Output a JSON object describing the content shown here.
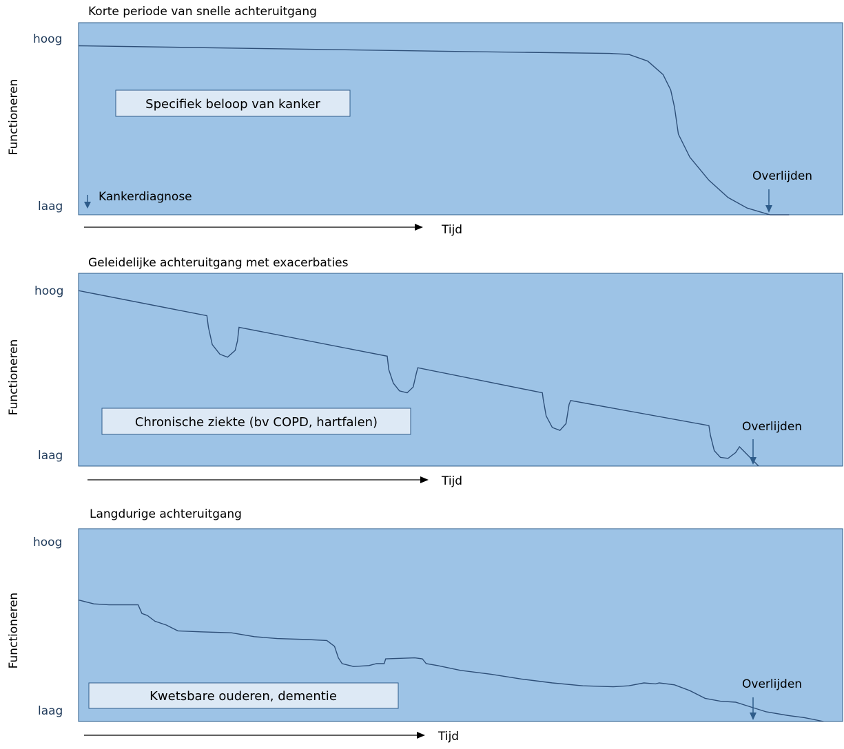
{
  "colors": {
    "panel_fill": "#9dc3e6",
    "panel_border": "#2e5c8a",
    "curve": "#2e4f78",
    "label_box_fill": "#dde9f5",
    "arrow": "#2e5c8a",
    "level_text": "#1f3a5a"
  },
  "chart_data": [
    {
      "type": "line",
      "title": "Korte periode van snelle achteruitgang",
      "ylabel": "Functioneren",
      "ytick_top": "hoog",
      "ytick_bottom": "laag",
      "xlabel": "Tijd",
      "box_label": "Specifiek beloop van kanker",
      "start_annotation": "Kankerdiagnose",
      "end_annotation": "Overlijden",
      "xlim": [
        0,
        1
      ],
      "ylim": [
        0,
        1
      ],
      "points": [
        [
          0,
          0.88
        ],
        [
          0.25,
          0.865
        ],
        [
          0.5,
          0.85
        ],
        [
          0.695,
          0.84
        ],
        [
          0.72,
          0.835
        ],
        [
          0.745,
          0.8
        ],
        [
          0.765,
          0.73
        ],
        [
          0.775,
          0.65
        ],
        [
          0.78,
          0.56
        ],
        [
          0.785,
          0.42
        ],
        [
          0.8,
          0.3
        ],
        [
          0.825,
          0.18
        ],
        [
          0.85,
          0.09
        ],
        [
          0.875,
          0.035
        ],
        [
          0.905,
          0.0
        ],
        [
          0.93,
          0.0
        ]
      ]
    },
    {
      "type": "line",
      "title": "Geleidelijke achteruitgang met exacerbaties",
      "ylabel": "Functioneren",
      "ytick_top": "hoog",
      "ytick_bottom": "laag",
      "xlabel": "Tijd",
      "box_label": "Chronische ziekte (bv COPD, hartfalen)",
      "end_annotation": "Overlijden",
      "xlim": [
        0,
        1
      ],
      "ylim": [
        0,
        1
      ],
      "points": [
        [
          0,
          0.91
        ],
        [
          0.168,
          0.78
        ],
        [
          0.17,
          0.72
        ],
        [
          0.175,
          0.63
        ],
        [
          0.185,
          0.58
        ],
        [
          0.195,
          0.565
        ],
        [
          0.205,
          0.6
        ],
        [
          0.208,
          0.65
        ],
        [
          0.21,
          0.72
        ],
        [
          0.404,
          0.57
        ],
        [
          0.406,
          0.5
        ],
        [
          0.412,
          0.43
        ],
        [
          0.42,
          0.39
        ],
        [
          0.43,
          0.38
        ],
        [
          0.438,
          0.41
        ],
        [
          0.442,
          0.48
        ],
        [
          0.444,
          0.51
        ],
        [
          0.607,
          0.38
        ],
        [
          0.608,
          0.35
        ],
        [
          0.612,
          0.26
        ],
        [
          0.62,
          0.2
        ],
        [
          0.63,
          0.185
        ],
        [
          0.638,
          0.22
        ],
        [
          0.642,
          0.32
        ],
        [
          0.644,
          0.34
        ],
        [
          0.825,
          0.21
        ],
        [
          0.827,
          0.16
        ],
        [
          0.832,
          0.08
        ],
        [
          0.84,
          0.045
        ],
        [
          0.85,
          0.04
        ],
        [
          0.86,
          0.07
        ],
        [
          0.865,
          0.1
        ],
        [
          0.89,
          0.0
        ]
      ]
    },
    {
      "type": "line",
      "title": "Langdurige achteruitgang",
      "ylabel": "Functioneren",
      "ytick_top": "hoog",
      "ytick_bottom": "laag",
      "xlabel": "Tijd",
      "box_label": "Kwetsbare ouderen, dementie",
      "end_annotation": "Overlijden",
      "xlim": [
        0,
        1
      ],
      "ylim": [
        0,
        1
      ],
      "points": [
        [
          0,
          0.63
        ],
        [
          0.02,
          0.61
        ],
        [
          0.04,
          0.605
        ],
        [
          0.078,
          0.605
        ],
        [
          0.083,
          0.56
        ],
        [
          0.09,
          0.55
        ],
        [
          0.1,
          0.52
        ],
        [
          0.115,
          0.5
        ],
        [
          0.13,
          0.47
        ],
        [
          0.16,
          0.465
        ],
        [
          0.2,
          0.46
        ],
        [
          0.23,
          0.44
        ],
        [
          0.26,
          0.43
        ],
        [
          0.3,
          0.425
        ],
        [
          0.325,
          0.42
        ],
        [
          0.335,
          0.39
        ],
        [
          0.34,
          0.33
        ],
        [
          0.345,
          0.3
        ],
        [
          0.36,
          0.285
        ],
        [
          0.38,
          0.29
        ],
        [
          0.39,
          0.3
        ],
        [
          0.4,
          0.3
        ],
        [
          0.402,
          0.325
        ],
        [
          0.44,
          0.33
        ],
        [
          0.45,
          0.325
        ],
        [
          0.455,
          0.3
        ],
        [
          0.47,
          0.29
        ],
        [
          0.5,
          0.265
        ],
        [
          0.54,
          0.245
        ],
        [
          0.58,
          0.22
        ],
        [
          0.62,
          0.2
        ],
        [
          0.66,
          0.185
        ],
        [
          0.7,
          0.18
        ],
        [
          0.72,
          0.185
        ],
        [
          0.74,
          0.2
        ],
        [
          0.755,
          0.195
        ],
        [
          0.76,
          0.2
        ],
        [
          0.78,
          0.19
        ],
        [
          0.8,
          0.16
        ],
        [
          0.82,
          0.12
        ],
        [
          0.84,
          0.105
        ],
        [
          0.86,
          0.1
        ],
        [
          0.88,
          0.075
        ],
        [
          0.9,
          0.05
        ],
        [
          0.93,
          0.03
        ],
        [
          0.95,
          0.02
        ],
        [
          0.975,
          0.0
        ]
      ]
    }
  ]
}
